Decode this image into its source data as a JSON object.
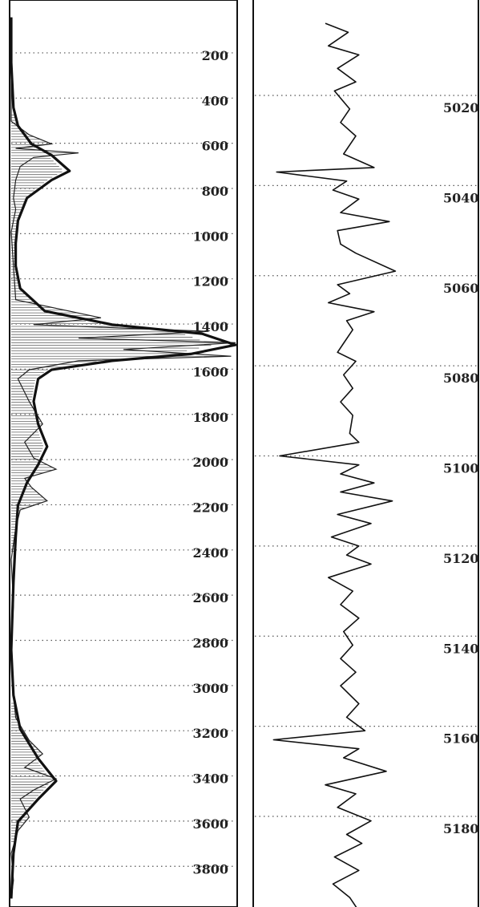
{
  "chart_data": [
    {
      "type": "area",
      "y_ticks": [
        "200",
        "400",
        "600",
        "800",
        "1000",
        "1200",
        "1400",
        "1600",
        "1800",
        "2000",
        "2200",
        "2400",
        "2600",
        "2800",
        "3000",
        "3200",
        "3400",
        "3600",
        "3800"
      ],
      "ylim": [
        0,
        4000
      ],
      "y_reversed": true,
      "grid": "dotted horizontal",
      "series": [
        {
          "style": "thick smooth envelope",
          "points": [
            [
              0.0,
              0
            ],
            [
              0.0,
              200
            ],
            [
              0.01,
              400
            ],
            [
              0.03,
              480
            ],
            [
              0.09,
              560
            ],
            [
              0.18,
              610
            ],
            [
              0.26,
              680
            ],
            [
              0.18,
              720
            ],
            [
              0.07,
              800
            ],
            [
              0.03,
              900
            ],
            [
              0.02,
              1000
            ],
            [
              0.02,
              1100
            ],
            [
              0.04,
              1200
            ],
            [
              0.15,
              1300
            ],
            [
              0.45,
              1360
            ],
            [
              0.85,
              1400
            ],
            [
              1.0,
              1450
            ],
            [
              0.8,
              1490
            ],
            [
              0.45,
              1520
            ],
            [
              0.18,
              1560
            ],
            [
              0.12,
              1600
            ],
            [
              0.1,
              1700
            ],
            [
              0.12,
              1800
            ],
            [
              0.16,
              1900
            ],
            [
              0.12,
              1980
            ],
            [
              0.07,
              2060
            ],
            [
              0.03,
              2160
            ],
            [
              0.02,
              2300
            ],
            [
              0.01,
              2500
            ],
            [
              0.0,
              2800
            ],
            [
              0.01,
              3000
            ],
            [
              0.04,
              3150
            ],
            [
              0.12,
              3280
            ],
            [
              0.2,
              3380
            ],
            [
              0.12,
              3460
            ],
            [
              0.03,
              3560
            ],
            [
              0.01,
              3700
            ],
            [
              0.0,
              3900
            ]
          ]
        },
        {
          "style": "thin spiky detail",
          "points": [
            [
              0.0,
              0
            ],
            [
              0.0,
              250
            ],
            [
              0.0,
              460
            ],
            [
              0.08,
              520
            ],
            [
              0.18,
              560
            ],
            [
              0.02,
              580
            ],
            [
              0.3,
              600
            ],
            [
              0.1,
              620
            ],
            [
              0.04,
              660
            ],
            [
              0.02,
              720
            ],
            [
              0.01,
              800
            ],
            [
              0.02,
              850
            ],
            [
              0.0,
              950
            ],
            [
              0.01,
              1100
            ],
            [
              0.02,
              1250
            ],
            [
              0.4,
              1330
            ],
            [
              0.1,
              1360
            ],
            [
              0.88,
              1390
            ],
            [
              0.3,
              1420
            ],
            [
              1.0,
              1440
            ],
            [
              0.5,
              1470
            ],
            [
              0.98,
              1500
            ],
            [
              0.3,
              1520
            ],
            [
              0.08,
              1560
            ],
            [
              0.03,
              1600
            ],
            [
              0.08,
              1700
            ],
            [
              0.14,
              1800
            ],
            [
              0.06,
              1880
            ],
            [
              0.1,
              1950
            ],
            [
              0.2,
              2000
            ],
            [
              0.06,
              2040
            ],
            [
              0.09,
              2080
            ],
            [
              0.16,
              2140
            ],
            [
              0.04,
              2180
            ],
            [
              0.02,
              2260
            ],
            [
              0.0,
              2400
            ],
            [
              0.01,
              2600
            ],
            [
              0.0,
              2800
            ],
            [
              0.01,
              3000
            ],
            [
              0.02,
              3100
            ],
            [
              0.08,
              3200
            ],
            [
              0.14,
              3260
            ],
            [
              0.06,
              3320
            ],
            [
              0.2,
              3370
            ],
            [
              0.1,
              3420
            ],
            [
              0.04,
              3460
            ],
            [
              0.08,
              3540
            ],
            [
              0.03,
              3600
            ],
            [
              0.0,
              3700
            ],
            [
              0.01,
              3820
            ],
            [
              0.0,
              3900
            ]
          ]
        }
      ]
    },
    {
      "type": "line",
      "y_ticks": [
        "5020",
        "5040",
        "5060",
        "5080",
        "5100",
        "5120",
        "5140",
        "5160",
        "5180"
      ],
      "ylim": [
        5004,
        5201
      ],
      "y_reversed": true,
      "grid": "dotted horizontal",
      "x_range": [
        0,
        1
      ],
      "series": [
        {
          "points": [
            [
              0.4,
              5004
            ],
            [
              0.55,
              5006
            ],
            [
              0.42,
              5009
            ],
            [
              0.62,
              5011
            ],
            [
              0.48,
              5014
            ],
            [
              0.6,
              5017
            ],
            [
              0.46,
              5019
            ],
            [
              0.56,
              5023
            ],
            [
              0.5,
              5026
            ],
            [
              0.6,
              5029
            ],
            [
              0.52,
              5033
            ],
            [
              0.72,
              5036
            ],
            [
              0.08,
              5037
            ],
            [
              0.54,
              5039
            ],
            [
              0.45,
              5041
            ],
            [
              0.62,
              5043
            ],
            [
              0.5,
              5046
            ],
            [
              0.82,
              5048
            ],
            [
              0.48,
              5050
            ],
            [
              0.5,
              5053
            ],
            [
              0.6,
              5055
            ],
            [
              0.86,
              5059
            ],
            [
              0.48,
              5062
            ],
            [
              0.56,
              5064
            ],
            [
              0.42,
              5066
            ],
            [
              0.72,
              5068
            ],
            [
              0.54,
              5070
            ],
            [
              0.58,
              5072
            ],
            [
              0.52,
              5075
            ],
            [
              0.48,
              5077
            ],
            [
              0.6,
              5079
            ],
            [
              0.52,
              5082
            ],
            [
              0.58,
              5085
            ],
            [
              0.5,
              5088
            ],
            [
              0.58,
              5091
            ],
            [
              0.56,
              5095
            ],
            [
              0.62,
              5097
            ],
            [
              0.1,
              5100
            ],
            [
              0.62,
              5102
            ],
            [
              0.5,
              5104
            ],
            [
              0.72,
              5106
            ],
            [
              0.5,
              5108
            ],
            [
              0.84,
              5110
            ],
            [
              0.48,
              5113
            ],
            [
              0.7,
              5115
            ],
            [
              0.44,
              5118
            ],
            [
              0.62,
              5120
            ],
            [
              0.54,
              5122
            ],
            [
              0.7,
              5124
            ],
            [
              0.42,
              5127
            ],
            [
              0.58,
              5130
            ],
            [
              0.5,
              5133
            ],
            [
              0.62,
              5136
            ],
            [
              0.52,
              5139
            ],
            [
              0.58,
              5142
            ],
            [
              0.5,
              5145
            ],
            [
              0.6,
              5148
            ],
            [
              0.5,
              5151
            ],
            [
              0.62,
              5155
            ],
            [
              0.54,
              5158
            ],
            [
              0.66,
              5161
            ],
            [
              0.06,
              5163
            ],
            [
              0.62,
              5165
            ],
            [
              0.52,
              5167
            ],
            [
              0.8,
              5170
            ],
            [
              0.4,
              5173
            ],
            [
              0.6,
              5175
            ],
            [
              0.48,
              5178
            ],
            [
              0.7,
              5181
            ],
            [
              0.54,
              5184
            ],
            [
              0.64,
              5186
            ],
            [
              0.46,
              5189
            ],
            [
              0.62,
              5192
            ],
            [
              0.45,
              5195
            ],
            [
              0.56,
              5198
            ],
            [
              0.62,
              5201
            ]
          ]
        }
      ]
    }
  ]
}
